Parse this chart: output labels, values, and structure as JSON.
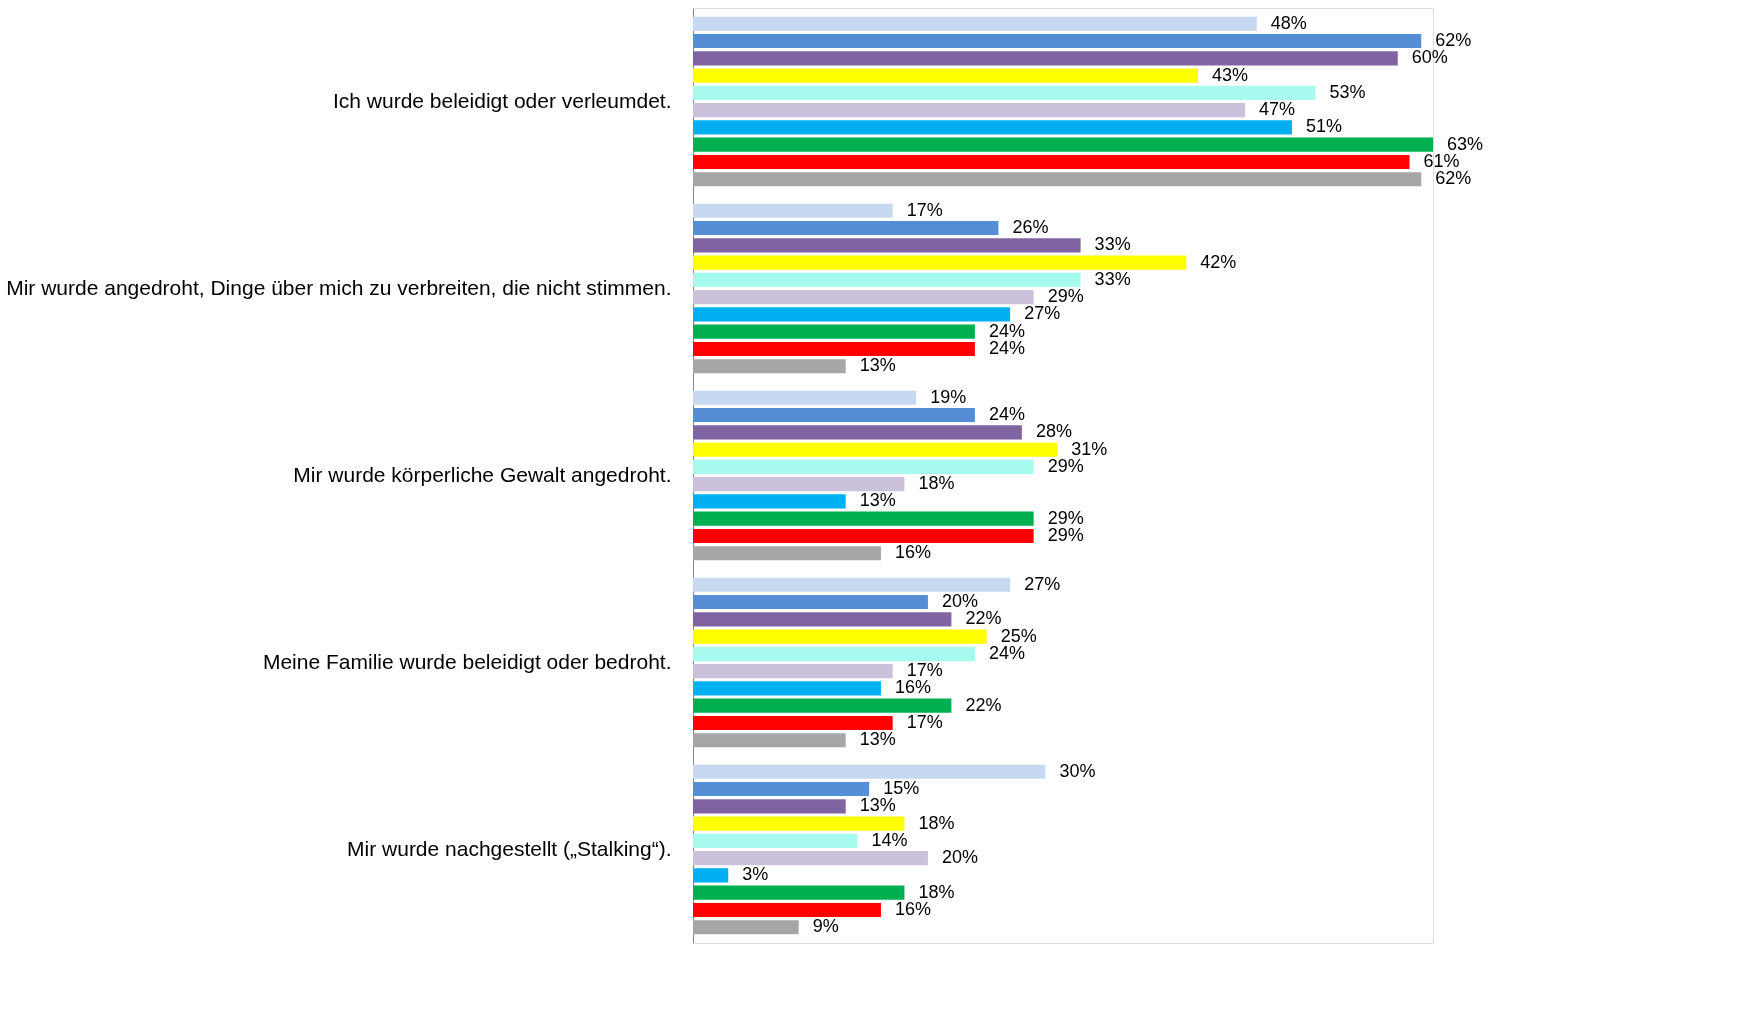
{
  "chart_data": {
    "type": "bar",
    "orientation": "horizontal",
    "data_labels": true,
    "categories": [
      "Ich wurde beleidigt oder verleumdet.",
      "Mir wurde angedroht, Dinge über mich zu verbreiten, die nicht stimmen.",
      "Mir wurde körperliche Gewalt angedroht.",
      "Meine Familie wurde beleidigt oder bedroht.",
      "Mir wurde nachgestellt („Stalking“)."
    ],
    "series": [
      {
        "color": "#c6d9f1",
        "values": [
          48,
          17,
          19,
          27,
          30
        ],
        "value_labels": [
          "48%",
          "17%",
          "19%",
          "27%",
          "30%"
        ]
      },
      {
        "color": "#558ed5",
        "values": [
          62,
          26,
          24,
          20,
          15
        ],
        "value_labels": [
          "62%",
          "26%",
          "24%",
          "20%",
          "15%"
        ]
      },
      {
        "color": "#8064a2",
        "values": [
          60,
          33,
          28,
          22,
          13
        ],
        "value_labels": [
          "60%",
          "33%",
          "28%",
          "22%",
          "13%"
        ]
      },
      {
        "color": "#ffff00",
        "values": [
          43,
          42,
          31,
          25,
          18
        ],
        "value_labels": [
          "43%",
          "42%",
          "31%",
          "25%",
          "18%"
        ]
      },
      {
        "color": "#a6fbee",
        "values": [
          53,
          33,
          29,
          24,
          14
        ],
        "value_labels": [
          "53%",
          "33%",
          "29%",
          "24%",
          "14%"
        ]
      },
      {
        "color": "#ccc1da",
        "values": [
          47,
          29,
          18,
          17,
          20
        ],
        "value_labels": [
          "47%",
          "29%",
          "18%",
          "17%",
          "20%"
        ]
      },
      {
        "color": "#00b0f0",
        "values": [
          51,
          27,
          13,
          16,
          3
        ],
        "value_labels": [
          "51%",
          "27%",
          "13%",
          "16%",
          "3%"
        ]
      },
      {
        "color": "#00b050",
        "values": [
          63,
          24,
          29,
          22,
          18
        ],
        "value_labels": [
          "63%",
          "24%",
          "29%",
          "22%",
          "18%"
        ]
      },
      {
        "color": "#ff0000",
        "values": [
          61,
          24,
          29,
          17,
          16
        ],
        "value_labels": [
          "61%",
          "24%",
          "29%",
          "17%",
          "16%"
        ]
      },
      {
        "color": "#a6a6a6",
        "values": [
          62,
          13,
          16,
          13,
          9
        ],
        "value_labels": [
          "62%",
          "13%",
          "16%",
          "13%",
          "9%"
        ]
      }
    ]
  }
}
